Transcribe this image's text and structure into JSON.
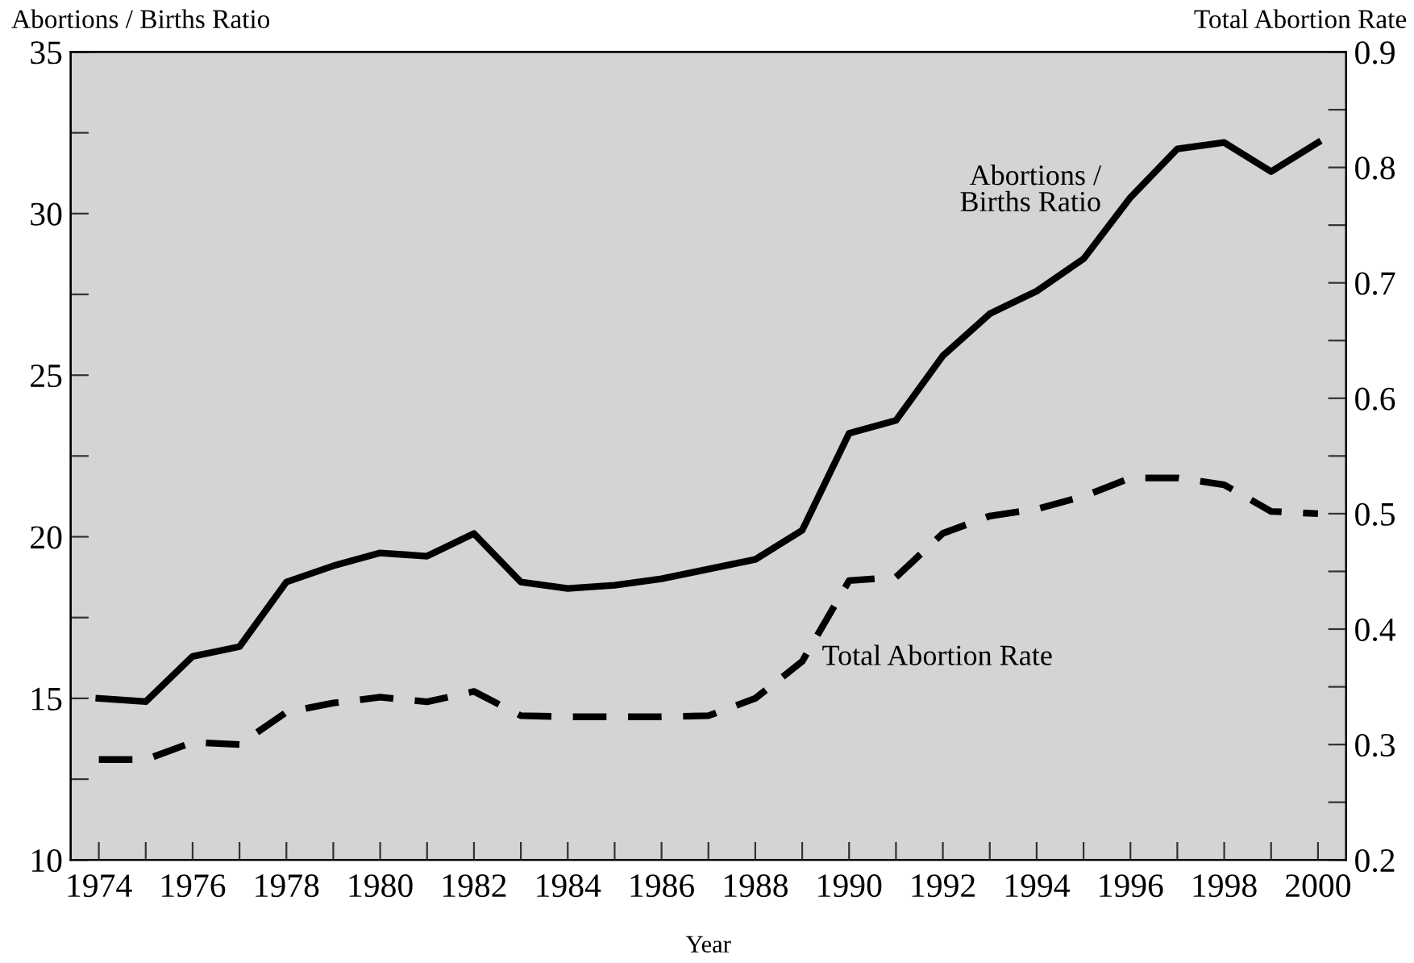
{
  "chart_data": {
    "type": "line",
    "xlabel": "Year",
    "ylabel": "Abortions / Births Ratio",
    "y2label": "Total Abortion Rate",
    "x": [
      1974,
      1975,
      1976,
      1977,
      1978,
      1979,
      1980,
      1981,
      1982,
      1983,
      1984,
      1985,
      1986,
      1987,
      1988,
      1989,
      1990,
      1991,
      1992,
      1993,
      1994,
      1995,
      1996,
      1997,
      1998,
      1999,
      2000
    ],
    "series": [
      {
        "color": "#000000",
        "line_style": "solid",
        "values": [
          15.0,
          14.9,
          16.3,
          16.6,
          18.6,
          19.1,
          19.5,
          19.4,
          20.1,
          18.6,
          18.4,
          18.5,
          18.7,
          19.0,
          19.3,
          20.2,
          23.2,
          23.6,
          25.6,
          26.9,
          27.6,
          28.6,
          30.5,
          32.0,
          32.2,
          31.3,
          32.2
        ]
      },
      {
        "color": "#000000",
        "line_style": "dashed",
        "axis": "y2",
        "values": [
          0.287,
          0.287,
          0.302,
          0.3,
          0.328,
          0.336,
          0.341,
          0.337,
          0.346,
          0.325,
          0.324,
          0.324,
          0.324,
          0.325,
          0.34,
          0.372,
          0.442,
          0.445,
          0.483,
          0.498,
          0.504,
          0.515,
          0.531,
          0.531,
          0.525,
          0.502,
          0.5
        ]
      }
    ],
    "annotations": [
      "Abortions /\nBirths Ratio",
      "Total Abortion Rate"
    ],
    "xlim": [
      1973.4,
      2000.6
    ],
    "xticks": [
      1974,
      {
        "value": 1975,
        "label": null
      },
      1976,
      {
        "value": 1977,
        "label": null
      },
      1978,
      {
        "value": 1979,
        "label": null
      },
      1980,
      {
        "value": 1981,
        "label": null
      },
      1982,
      {
        "value": 1983,
        "label": null
      },
      1984,
      {
        "value": 1985,
        "label": null
      },
      1986,
      {
        "value": 1987,
        "label": null
      },
      1988,
      {
        "value": 1989,
        "label": null
      },
      1990,
      {
        "value": 1991,
        "label": null
      },
      1992,
      {
        "value": 1993,
        "label": null
      },
      1994,
      {
        "value": 1995,
        "label": null
      },
      1996,
      {
        "value": 1997,
        "label": null
      },
      1998,
      {
        "value": 1999,
        "label": null
      },
      2000
    ],
    "ylim": [
      10,
      35
    ],
    "yticks": [
      10,
      {
        "value": 12.5,
        "label": null
      },
      15,
      {
        "value": 17.5,
        "label": null
      },
      20,
      {
        "value": 22.5,
        "label": null
      },
      25,
      {
        "value": 27.5,
        "label": null
      },
      30,
      {
        "value": 32.5,
        "label": null
      },
      35
    ],
    "y2lim": [
      0.2,
      0.9
    ],
    "y2ticks": [
      0.2,
      {
        "value": 0.25,
        "label": null
      },
      0.3,
      {
        "value": 0.35,
        "label": null
      },
      0.4,
      {
        "value": 0.45,
        "label": null
      },
      0.5,
      {
        "value": 0.55,
        "label": null
      },
      0.6,
      {
        "value": 0.65,
        "label": null
      },
      0.7,
      {
        "value": 0.75,
        "label": null
      },
      0.8,
      {
        "value": 0.85,
        "label": null
      },
      0.9
    ],
    "grid": false,
    "legend": false
  }
}
